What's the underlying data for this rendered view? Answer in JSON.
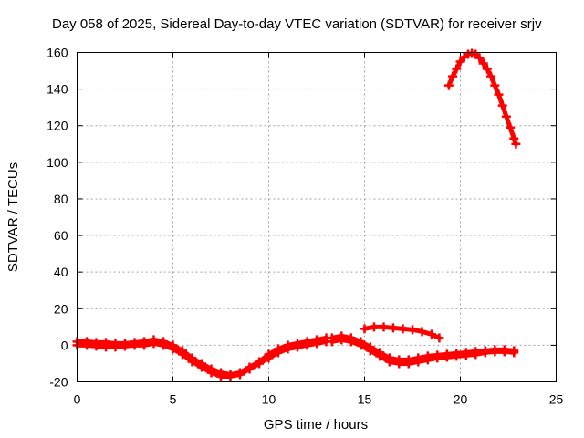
{
  "chart_data": {
    "type": "scatter",
    "title": "Day 058 of 2025, Sidereal Day-to-day VTEC variation (SDTVAR) for receiver srjv",
    "xlabel": "GPS time / hours",
    "ylabel": "SDTVAR / TECUs",
    "xlim": [
      0,
      25
    ],
    "ylim": [
      -20,
      160
    ],
    "xticks": [
      0,
      5,
      10,
      15,
      20,
      25
    ],
    "yticks": [
      -20,
      0,
      20,
      40,
      60,
      80,
      100,
      120,
      140,
      160
    ],
    "xtick_labels": [
      "0",
      "5",
      "10",
      "15",
      "20",
      "25"
    ],
    "ytick_labels": [
      "-20",
      "0",
      "20",
      "40",
      "60",
      "80",
      "100",
      "120",
      "140",
      "160"
    ],
    "grid": true,
    "legend": "none",
    "series_color": "#ff0000",
    "marker": "plus",
    "series": [
      {
        "x": [
          0.0,
          0.5,
          1.0,
          1.5,
          2.0,
          2.5,
          3.0,
          3.5,
          4.0,
          4.5,
          5.0,
          5.5,
          6.0,
          6.5,
          7.0,
          7.5,
          8.0,
          8.5,
          9.0,
          9.5,
          10.0,
          10.5,
          11.0,
          11.5,
          12.0,
          12.5,
          13.0
        ],
        "y": [
          2,
          2,
          1.5,
          1.5,
          1,
          1,
          1.5,
          2,
          3,
          2,
          0,
          -3,
          -7,
          -10,
          -13,
          -15,
          -16,
          -15,
          -12,
          -9,
          -5,
          -2,
          0,
          1,
          2,
          3,
          4
        ]
      },
      {
        "x": [
          0.0,
          0.5,
          1.0,
          1.5,
          2.0,
          2.5,
          3.0,
          3.5,
          4.0,
          4.5,
          5.0,
          5.5,
          6.0,
          6.5,
          7.0,
          7.5,
          8.0,
          8.5,
          9.0,
          9.5,
          10.0,
          10.5,
          11.0,
          11.5,
          12.0,
          12.5,
          13.0
        ],
        "y": [
          0,
          0,
          -0.5,
          -1,
          -1,
          -0.5,
          0,
          0,
          1,
          0,
          -2,
          -5,
          -9,
          -12,
          -15,
          -17,
          -17,
          -16,
          -13,
          -10,
          -7,
          -4,
          -2,
          -1,
          0,
          1,
          2
        ]
      },
      {
        "x": [
          13.3,
          13.8,
          14.3,
          14.8,
          15.3,
          15.8,
          16.3,
          16.8,
          17.3,
          17.8,
          18.3,
          18.8,
          19.3,
          19.8,
          20.3,
          20.8,
          21.3,
          21.8,
          22.3,
          22.8
        ],
        "y": [
          4,
          5,
          4,
          2,
          -1,
          -4,
          -7,
          -8,
          -8,
          -7,
          -6,
          -5.5,
          -5,
          -4.5,
          -4,
          -3.5,
          -3,
          -2.5,
          -2.5,
          -3
        ]
      },
      {
        "x": [
          13.3,
          13.8,
          14.3,
          14.8,
          15.3,
          15.8,
          16.3,
          16.8,
          17.3,
          17.8,
          18.3,
          18.8,
          19.3,
          19.8,
          20.3,
          20.8,
          21.3,
          21.8,
          22.3,
          22.8
        ],
        "y": [
          2,
          3,
          2,
          0,
          -3,
          -6,
          -9,
          -10,
          -10,
          -9,
          -8,
          -7,
          -6.5,
          -6,
          -5.5,
          -5,
          -4,
          -3.5,
          -3.5,
          -4
        ]
      },
      {
        "x": [
          15.0,
          15.5,
          16.0,
          16.5,
          17.0,
          17.5,
          18.0,
          18.5,
          18.9
        ],
        "y": [
          9,
          10,
          10,
          9.5,
          9,
          8.5,
          7.5,
          6,
          4
        ]
      },
      {
        "x": [
          19.4,
          19.6,
          19.8,
          20.0,
          20.2,
          20.4,
          20.6,
          20.8,
          21.0,
          21.2,
          21.4,
          21.6,
          21.8,
          22.0,
          22.2,
          22.4,
          22.6,
          22.8,
          22.9
        ],
        "y": [
          142,
          147,
          151,
          155,
          157.5,
          159,
          159.5,
          159,
          157,
          154,
          151,
          147,
          142,
          137,
          131,
          125,
          119,
          113,
          110
        ]
      }
    ]
  }
}
